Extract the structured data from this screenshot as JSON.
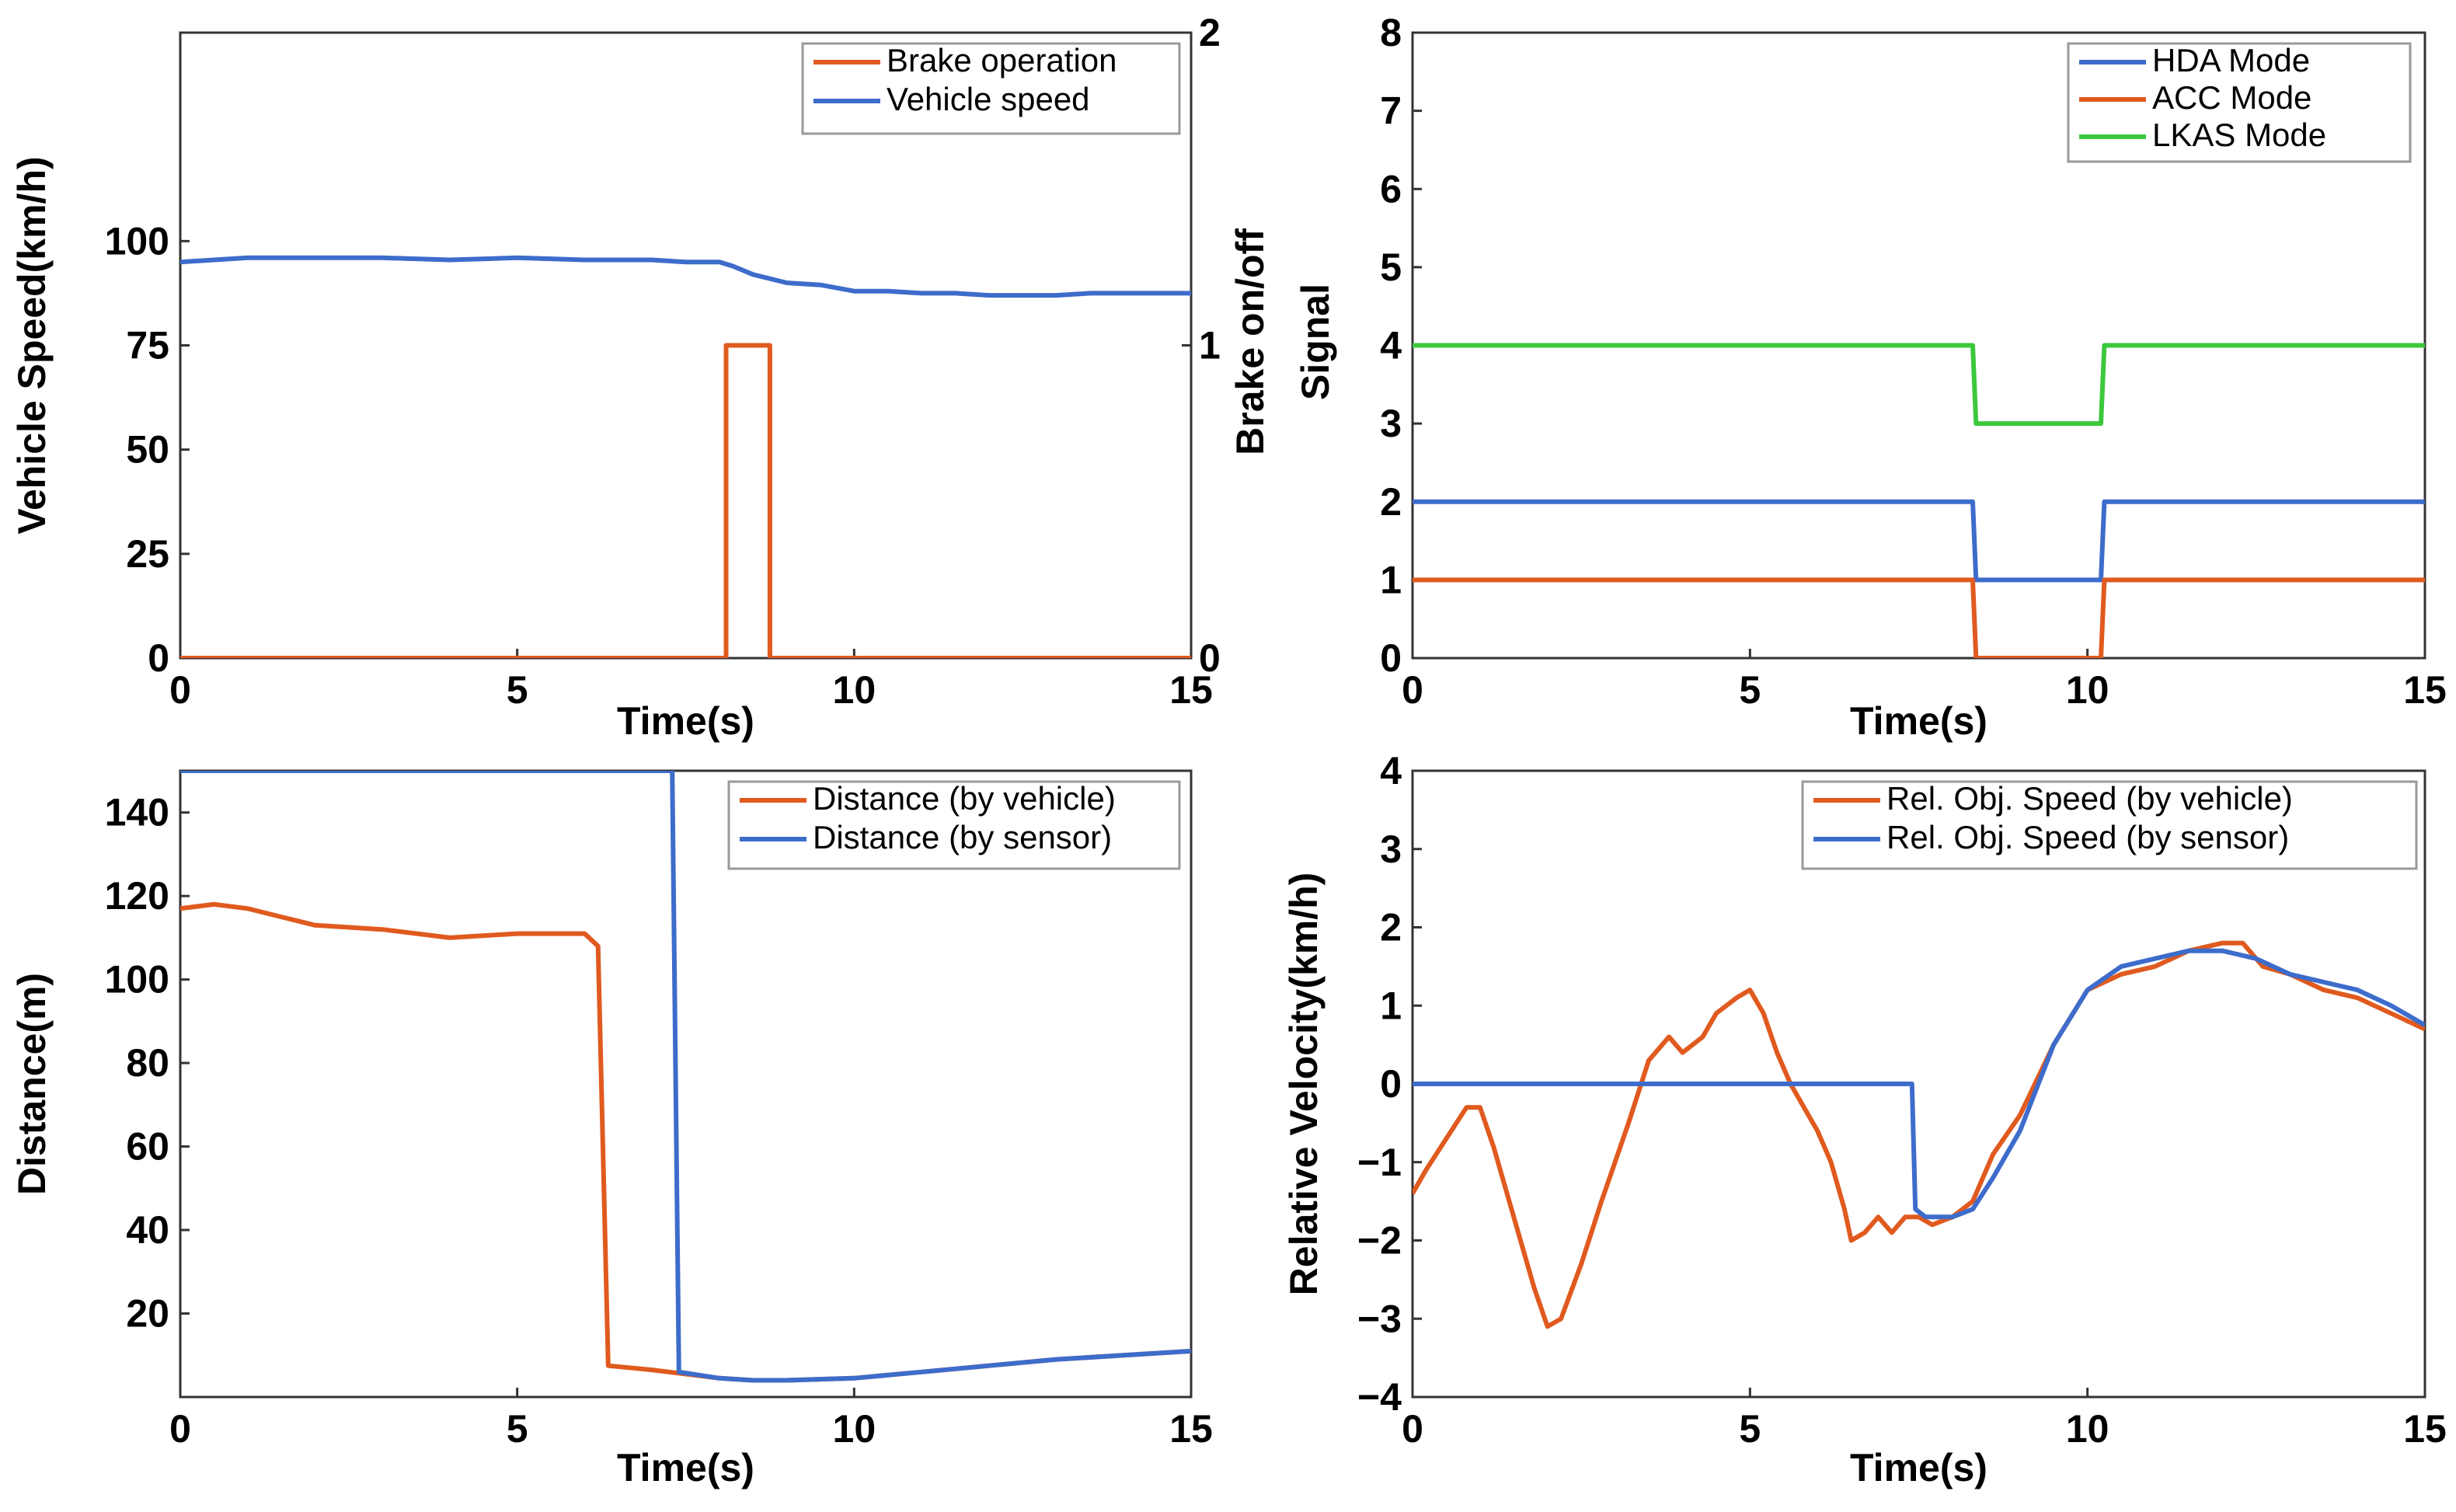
{
  "colors": {
    "orange": "#E05A1F",
    "blue": "#3D6CCB",
    "green": "#3CC83C"
  },
  "chart_data": [
    {
      "type": "line",
      "id": "p1",
      "xlabel": "Time(s)",
      "ylabel": "Vehicle Speed(km/h)",
      "ylabel_right": "Brake on/off",
      "xlim": [
        0,
        15
      ],
      "ylim": [
        0,
        150
      ],
      "ylim_right": [
        0,
        2
      ],
      "xticks": [
        0,
        5,
        10,
        15
      ],
      "yticks": [
        0,
        25,
        50,
        75,
        100
      ],
      "yticks_right": [
        0,
        1,
        2
      ],
      "legend_position": "top-right",
      "series": [
        {
          "name": "Brake operation",
          "color": "orange",
          "axis": "right",
          "x": [
            0,
            8.1,
            8.1,
            8.75,
            8.75,
            15
          ],
          "y": [
            0,
            0,
            1,
            1,
            0,
            0
          ]
        },
        {
          "name": "Vehicle speed",
          "color": "blue",
          "axis": "left",
          "x": [
            0,
            0.5,
            1,
            2,
            3,
            4,
            5,
            6,
            7,
            7.5,
            8,
            8.2,
            8.5,
            9,
            9.5,
            10,
            10.5,
            11,
            11.5,
            12,
            12.5,
            13,
            13.5,
            14,
            14.5,
            15
          ],
          "y": [
            95,
            95.5,
            96,
            96,
            96,
            95.5,
            96,
            95.5,
            95.5,
            95,
            95,
            94,
            92,
            90,
            89.5,
            88,
            88,
            87.5,
            87.5,
            87,
            87,
            87,
            87.5,
            87.5,
            87.5,
            87.5
          ]
        }
      ]
    },
    {
      "type": "line",
      "id": "p2",
      "xlabel": "Time(s)",
      "ylabel": "Signal",
      "xlim": [
        0,
        15
      ],
      "ylim": [
        0,
        8
      ],
      "xticks": [
        0,
        5,
        10,
        15
      ],
      "yticks": [
        0,
        1,
        2,
        3,
        4,
        5,
        6,
        7,
        8
      ],
      "legend_position": "top-right",
      "series": [
        {
          "name": "HDA Mode",
          "color": "blue",
          "x": [
            0,
            8.3,
            8.35,
            10.2,
            10.25,
            15
          ],
          "y": [
            2,
            2,
            1,
            1,
            2,
            2
          ]
        },
        {
          "name": "ACC Mode",
          "color": "orange",
          "x": [
            0,
            8.3,
            8.35,
            10.2,
            10.25,
            15
          ],
          "y": [
            1,
            1,
            0,
            0,
            1,
            1
          ]
        },
        {
          "name": "LKAS Mode",
          "color": "green",
          "x": [
            0,
            8.3,
            8.35,
            10.2,
            10.25,
            15
          ],
          "y": [
            4,
            4,
            3,
            3,
            4,
            4
          ]
        }
      ]
    },
    {
      "type": "line",
      "id": "p3",
      "xlabel": "Time(s)",
      "ylabel": "Distance(m)",
      "xlim": [
        0,
        15
      ],
      "ylim": [
        0,
        150
      ],
      "xticks": [
        0,
        5,
        10,
        15
      ],
      "yticks": [
        20,
        40,
        60,
        80,
        100,
        120,
        140
      ],
      "legend_position": "top-right",
      "series": [
        {
          "name": "Distance (by vehicle)",
          "color": "orange",
          "x": [
            0,
            0.5,
            1,
            1.5,
            2,
            3,
            4,
            5,
            6,
            6.2,
            6.35,
            7,
            8,
            8.5,
            9,
            10,
            11,
            12,
            13,
            14,
            15
          ],
          "y": [
            117,
            118,
            117,
            115,
            113,
            112,
            110,
            111,
            111,
            108,
            7.5,
            6.5,
            4.5,
            4,
            4,
            4.5,
            6,
            7.5,
            9,
            10,
            11
          ]
        },
        {
          "name": "Distance (by sensor)",
          "color": "blue",
          "x": [
            0,
            7.3,
            7.3,
            7.4,
            8,
            8.5,
            9,
            10,
            11,
            12,
            13,
            14,
            15
          ],
          "y": [
            150,
            150,
            150,
            6,
            4.5,
            4,
            4,
            4.5,
            6,
            7.5,
            9,
            10,
            11
          ]
        }
      ]
    },
    {
      "type": "line",
      "id": "p4",
      "xlabel": "Time(s)",
      "ylabel": "Relative Velocity(km/h)",
      "xlim": [
        0,
        15
      ],
      "ylim": [
        -4,
        4
      ],
      "xticks": [
        0,
        5,
        10,
        15
      ],
      "yticks": [
        -4,
        -3,
        -2,
        -1,
        0,
        1,
        2,
        3,
        4
      ],
      "legend_position": "top-right",
      "series": [
        {
          "name": "Rel. Obj. Speed (by vehicle)",
          "color": "orange",
          "x": [
            0,
            0.2,
            0.5,
            0.8,
            1.0,
            1.2,
            1.5,
            1.8,
            2.0,
            2.2,
            2.5,
            2.8,
            3.0,
            3.2,
            3.5,
            3.8,
            4.0,
            4.3,
            4.5,
            4.8,
            5.0,
            5.2,
            5.4,
            5.6,
            5.8,
            6.0,
            6.2,
            6.4,
            6.5,
            6.7,
            6.9,
            7.1,
            7.3,
            7.5,
            7.7,
            8.0,
            8.3,
            8.6,
            9.0,
            9.5,
            10.0,
            10.5,
            11.0,
            11.5,
            12.0,
            12.3,
            12.6,
            13.0,
            13.5,
            14.0,
            14.5,
            15.0
          ],
          "y": [
            -1.4,
            -1.1,
            -0.7,
            -0.3,
            -0.3,
            -0.8,
            -1.7,
            -2.6,
            -3.1,
            -3.0,
            -2.3,
            -1.5,
            -1.0,
            -0.5,
            0.3,
            0.6,
            0.4,
            0.6,
            0.9,
            1.1,
            1.2,
            0.9,
            0.4,
            0.0,
            -0.3,
            -0.6,
            -1.0,
            -1.6,
            -2.0,
            -1.9,
            -1.7,
            -1.9,
            -1.7,
            -1.7,
            -1.8,
            -1.7,
            -1.5,
            -0.9,
            -0.4,
            0.5,
            1.2,
            1.4,
            1.5,
            1.7,
            1.8,
            1.8,
            1.5,
            1.4,
            1.2,
            1.1,
            0.9,
            0.7
          ]
        },
        {
          "name": "Rel. Obj. Speed (by sensor)",
          "color": "blue",
          "x": [
            0,
            7.4,
            7.45,
            7.6,
            8.0,
            8.3,
            8.6,
            9.0,
            9.5,
            10.0,
            10.5,
            11.0,
            11.5,
            12.0,
            12.5,
            13.0,
            13.5,
            14.0,
            14.5,
            15.0
          ],
          "y": [
            0,
            0,
            -1.6,
            -1.7,
            -1.7,
            -1.6,
            -1.2,
            -0.6,
            0.5,
            1.2,
            1.5,
            1.6,
            1.7,
            1.7,
            1.6,
            1.4,
            1.3,
            1.2,
            1.0,
            0.75
          ]
        }
      ]
    }
  ]
}
